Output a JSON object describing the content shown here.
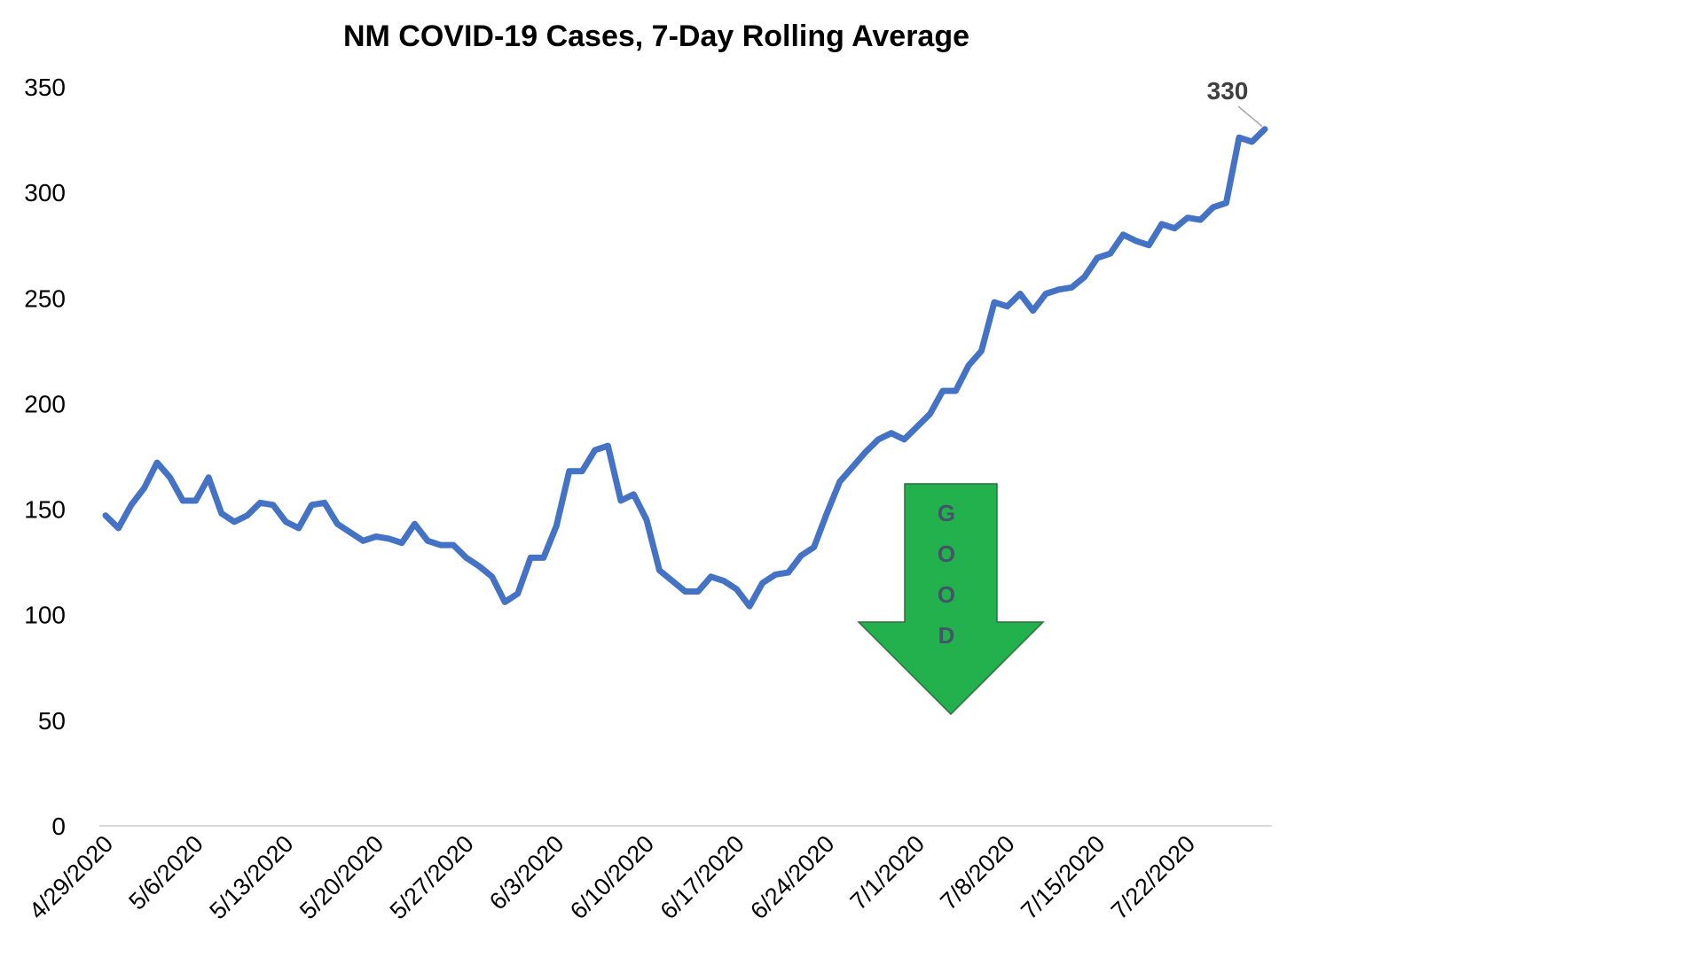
{
  "chart_data": {
    "type": "line",
    "title": "NM COVID-19 Cases, 7-Day Rolling Average",
    "xlabel": "",
    "ylabel": "",
    "ylim": [
      0,
      350
    ],
    "yticks": [
      "0",
      "50",
      "100",
      "150",
      "200",
      "250",
      "300",
      "350"
    ],
    "grid": false,
    "legend": "none",
    "x_tick_labels": [
      "4/29/2020",
      "5/6/2020",
      "5/13/2020",
      "5/20/2020",
      "5/27/2020",
      "6/3/2020",
      "6/10/2020",
      "6/17/2020",
      "6/24/2020",
      "7/1/2020",
      "7/8/2020",
      "7/15/2020",
      "7/22/2020"
    ],
    "x_start": "4/29/2020",
    "x_end": "7/29/2020",
    "series": [
      {
        "color": "#4472c4",
        "values": [
          147,
          141,
          152,
          160,
          172,
          165,
          154,
          154,
          165,
          148,
          144,
          147,
          153,
          152,
          144,
          141,
          152,
          153,
          143,
          139,
          135,
          137,
          136,
          134,
          143,
          135,
          133,
          133,
          127,
          123,
          118,
          106,
          110,
          127,
          127,
          142,
          168,
          168,
          178,
          180,
          154,
          157,
          145,
          121,
          116,
          111,
          111,
          118,
          116,
          112,
          104,
          115,
          119,
          120,
          128,
          132,
          148,
          163,
          170,
          177,
          183,
          186,
          183,
          189,
          195,
          206,
          206,
          218,
          225,
          248,
          246,
          252,
          244,
          252,
          254,
          255,
          260,
          269,
          271,
          280,
          277,
          275,
          285,
          283,
          288,
          287,
          293,
          295,
          326,
          324,
          330
        ]
      }
    ],
    "annotation": {
      "label": "330",
      "value": 330,
      "x": "7/29/2020"
    },
    "arrow": {
      "label": [
        "G",
        "O",
        "O",
        "D"
      ],
      "color": "#22b14c"
    }
  }
}
